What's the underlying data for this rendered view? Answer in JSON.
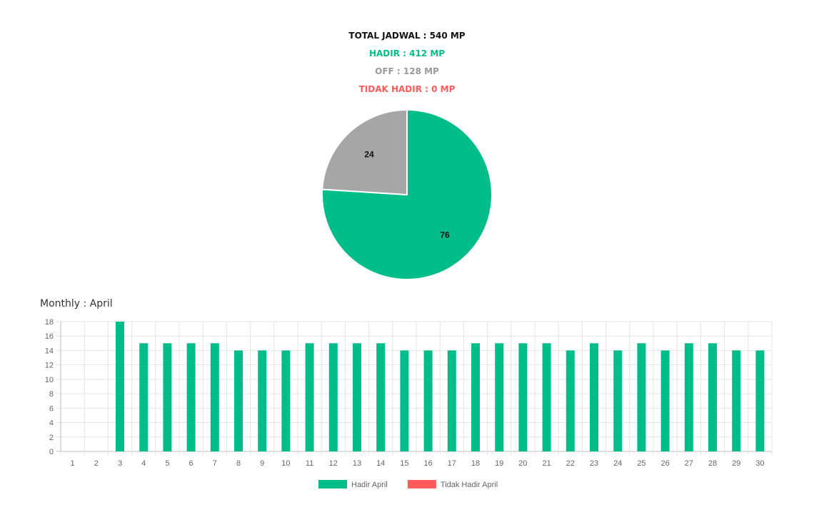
{
  "summary": {
    "total": "TOTAL JADWAL : 540 MP",
    "hadir": "HADIR : 412 MP",
    "off": "OFF : 128 MP",
    "tidak_hadir": "TIDAK HADIR : 0 MP"
  },
  "monthly_title": "Monthly : April",
  "colors": {
    "hadir": "#00bd8a",
    "off": "#a6a6a6",
    "tidak_hadir": "#ff5b5b"
  },
  "chart_data": [
    {
      "type": "pie",
      "slices": [
        {
          "label": "76",
          "value": 76,
          "color": "#00bd8a"
        },
        {
          "label": "24",
          "value": 24,
          "color": "#a6a6a6"
        }
      ]
    },
    {
      "type": "bar",
      "categories": [
        "1",
        "2",
        "3",
        "4",
        "5",
        "6",
        "7",
        "8",
        "9",
        "10",
        "11",
        "12",
        "13",
        "14",
        "15",
        "16",
        "17",
        "18",
        "19",
        "20",
        "21",
        "22",
        "23",
        "24",
        "25",
        "26",
        "27",
        "28",
        "29",
        "30"
      ],
      "series": [
        {
          "name": "Hadir April",
          "color": "#00bd8a",
          "values": [
            0,
            0,
            18,
            15,
            15,
            15,
            15,
            14,
            14,
            14,
            15,
            15,
            15,
            15,
            14,
            14,
            14,
            15,
            15,
            15,
            15,
            14,
            15,
            14,
            15,
            14,
            15,
            15,
            14,
            14
          ]
        },
        {
          "name": "Tidak Hadir April",
          "color": "#ff5b5b",
          "values": [
            0,
            0,
            0,
            0,
            0,
            0,
            0,
            0,
            0,
            0,
            0,
            0,
            0,
            0,
            0,
            0,
            0,
            0,
            0,
            0,
            0,
            0,
            0,
            0,
            0,
            0,
            0,
            0,
            0,
            0
          ]
        }
      ],
      "ylim": [
        0,
        18
      ],
      "yticks": [
        0,
        2,
        4,
        6,
        8,
        10,
        12,
        14,
        16,
        18
      ],
      "grid": true,
      "legend": "bottom"
    }
  ]
}
